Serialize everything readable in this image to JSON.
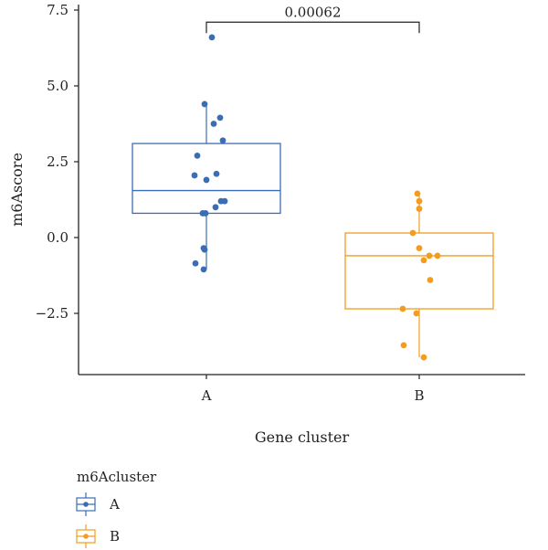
{
  "chart_data": {
    "type": "box",
    "xlabel": "Gene cluster",
    "ylabel": "m6Ascore",
    "categories": [
      "A",
      "B"
    ],
    "yticks": [
      -2.5,
      0.0,
      2.5,
      5.0,
      7.5
    ],
    "ytick_labels": [
      "−2.5",
      "0.0",
      "2.5",
      "5.0",
      "7.5"
    ],
    "ylim": [
      -4.5,
      7.6
    ],
    "grid": false,
    "legend": {
      "title": "m6Acluster",
      "position": "bottom-left",
      "entries": [
        "A",
        "B"
      ]
    },
    "annotation": {
      "text": "0.00062",
      "between": [
        "A",
        "B"
      ],
      "y": 7.1
    },
    "series": [
      {
        "name": "A",
        "color": "#3b6db5",
        "box": {
          "min": -1.05,
          "q1": 0.8,
          "median": 1.55,
          "q3": 3.1,
          "max": 4.4
        },
        "points": [
          {
            "x": 0.06,
            "y": 6.6
          },
          {
            "x": -0.02,
            "y": 4.4
          },
          {
            "x": 0.15,
            "y": 3.95
          },
          {
            "x": 0.08,
            "y": 3.75
          },
          {
            "x": 0.18,
            "y": 3.2
          },
          {
            "x": -0.1,
            "y": 2.7
          },
          {
            "x": -0.13,
            "y": 2.05
          },
          {
            "x": 0.11,
            "y": 2.1
          },
          {
            "x": 0.0,
            "y": 1.9
          },
          {
            "x": 0.16,
            "y": 1.2
          },
          {
            "x": 0.2,
            "y": 1.2
          },
          {
            "x": 0.1,
            "y": 1.0
          },
          {
            "x": -0.04,
            "y": 0.8
          },
          {
            "x": -0.01,
            "y": 0.8
          },
          {
            "x": -0.03,
            "y": -0.35
          },
          {
            "x": -0.02,
            "y": -0.4
          },
          {
            "x": -0.12,
            "y": -0.85
          },
          {
            "x": -0.03,
            "y": -1.05
          }
        ]
      },
      {
        "name": "B",
        "color": "#f39c1f",
        "box": {
          "min": -3.95,
          "q1": -2.35,
          "median": -0.6,
          "q3": 0.15,
          "max": 1.45
        },
        "points": [
          {
            "x": -0.02,
            "y": 1.45
          },
          {
            "x": 0.0,
            "y": 1.2
          },
          {
            "x": 0.0,
            "y": 0.95
          },
          {
            "x": -0.07,
            "y": 0.15
          },
          {
            "x": 0.0,
            "y": -0.35
          },
          {
            "x": 0.11,
            "y": -0.6
          },
          {
            "x": 0.2,
            "y": -0.6
          },
          {
            "x": 0.05,
            "y": -0.75
          },
          {
            "x": 0.12,
            "y": -1.4
          },
          {
            "x": -0.18,
            "y": -2.35
          },
          {
            "x": -0.03,
            "y": -2.5
          },
          {
            "x": -0.17,
            "y": -3.55
          },
          {
            "x": 0.05,
            "y": -3.95
          }
        ]
      }
    ]
  }
}
